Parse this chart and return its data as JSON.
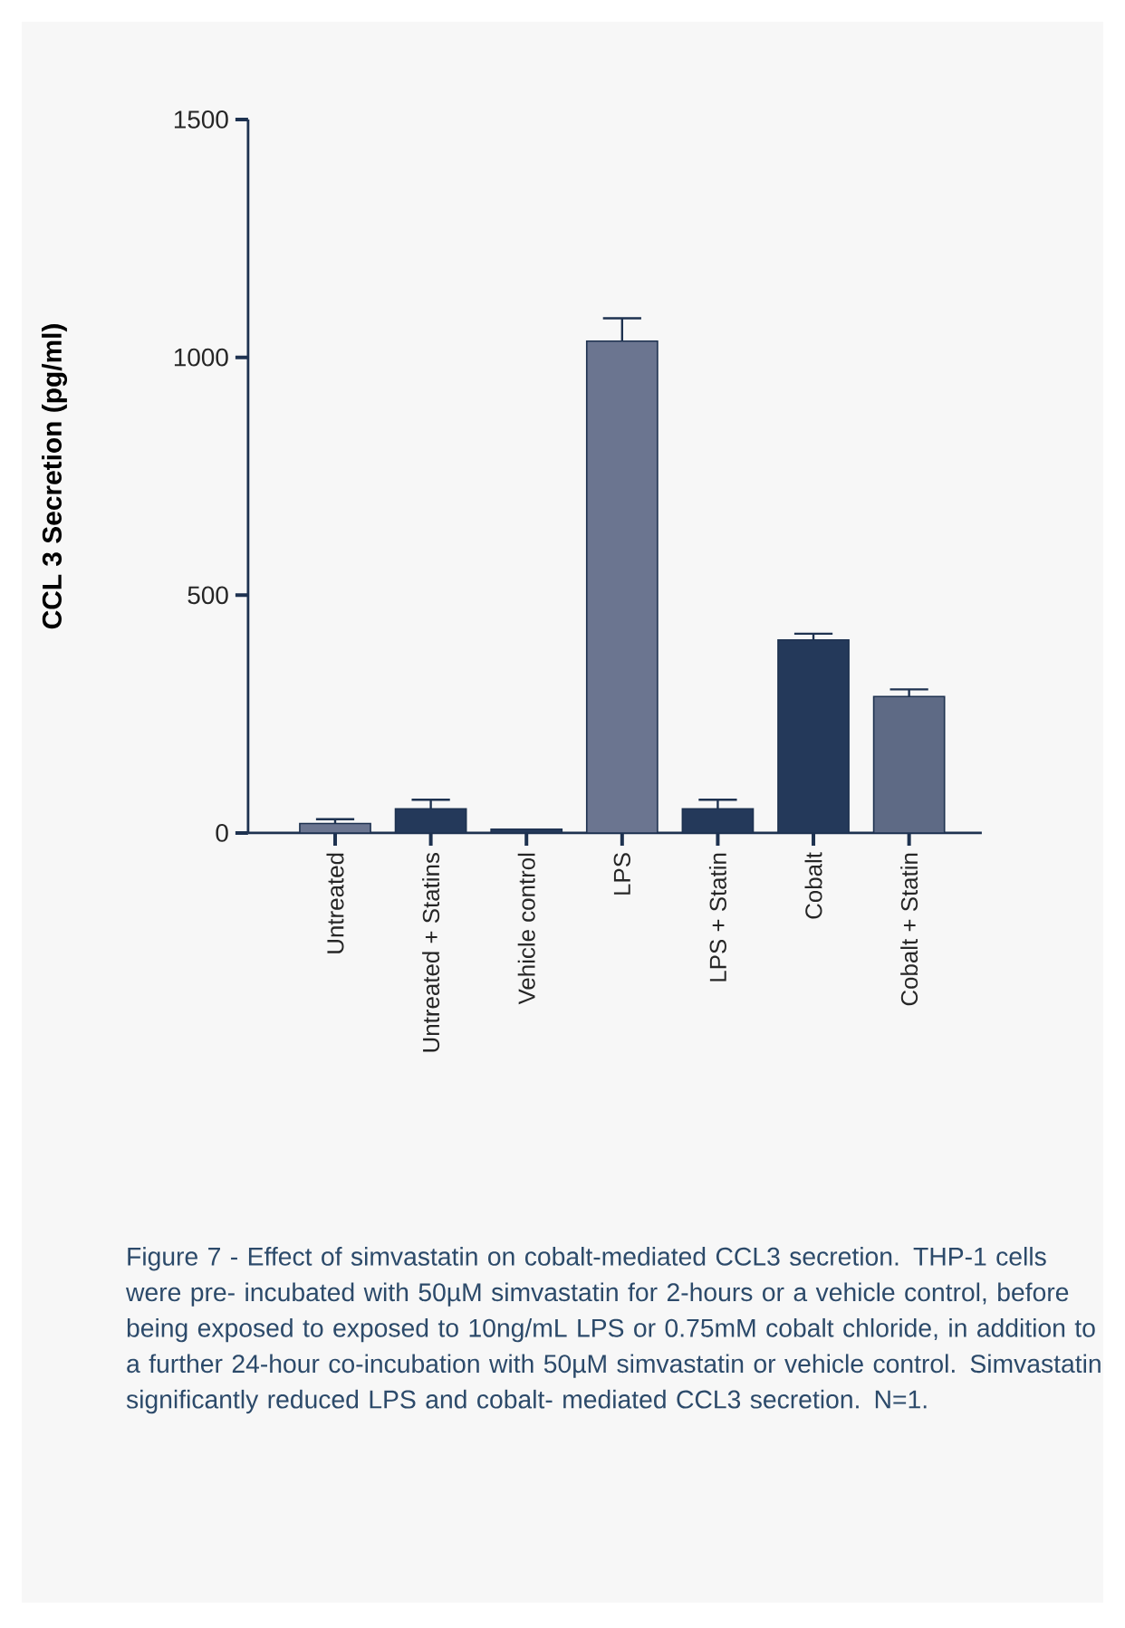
{
  "chart_data": {
    "type": "bar",
    "ylabel": "CCL 3 Secretion (pg/ml)",
    "categories": [
      "Untreated",
      "Untreated + Statins",
      "Vehicle control",
      "LPS",
      "LPS + Statin",
      "Cobalt",
      "Cobalt + Statin"
    ],
    "values": [
      20,
      51,
      8,
      1034,
      51,
      406,
      287
    ],
    "errors": [
      [
        20,
        29
      ],
      [
        51,
        70
      ],
      null,
      [
        1034,
        1082
      ],
      [
        51,
        70
      ],
      [
        406,
        419
      ],
      [
        287,
        302
      ]
    ],
    "colors": [
      "#6b7590",
      "#24395a",
      "#24395a",
      "#6b7590",
      "#24395a",
      "#24395a",
      "#5e6a85"
    ],
    "ylim": [
      0,
      1500
    ],
    "yticks": [
      0,
      500,
      1000,
      1500
    ],
    "annotations": [
      "Figure 7 - Effect of simvastatin on cobalt-mediated CCL3 secretion. THP-1 cells were pre- incubated with 50µM simvastatin for 2-hours or a vehicle control, before being exposed to exposed to 10ng/mL LPS or 0.75mM cobalt chloride, in addition to a further 24-hour co-incubation with 50µM simvastatin or vehicle control. Simvastatin significantly reduced LPS and cobalt- mediated CCL3 secretion. N=1."
    ]
  }
}
